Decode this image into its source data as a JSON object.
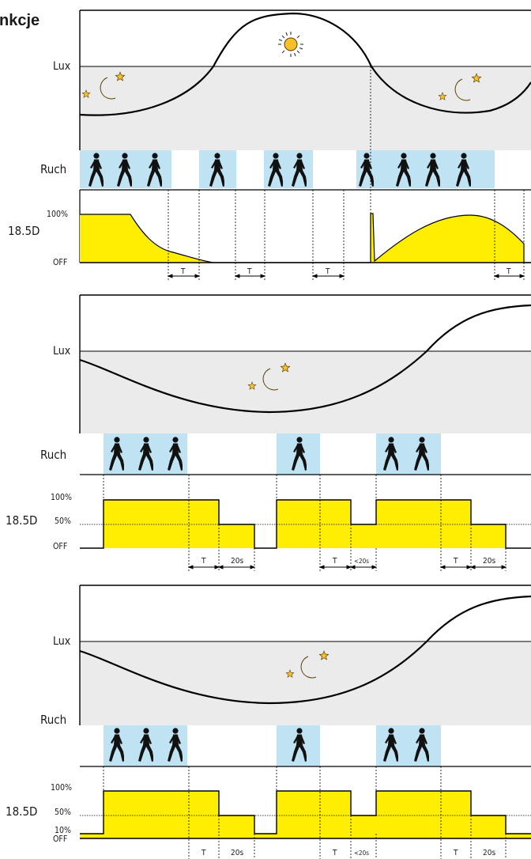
{
  "header": {
    "title": "nkcje"
  },
  "labels": {
    "lux": "Lux",
    "motion": "Ruch",
    "mode": "18.5D",
    "level_100": "100%",
    "level_50": "50%",
    "level_10": "10%",
    "level_off": "OFF",
    "delay_t": "T",
    "delay_20s": "20s",
    "delay_lt20s": "<20s"
  },
  "icons": {
    "sun": "sun-icon",
    "moon": "moon-icon",
    "star": "star-icon",
    "walker": "walking-person-icon"
  },
  "colors": {
    "line": "#000000",
    "lux_band": "#ebebeb",
    "motion_band": "#bfe3f3",
    "output_fill": "#ffee00",
    "celestial_fill": "#fbc02d",
    "celestial_stroke": "#5a4100"
  },
  "panels": [
    {
      "id": "panel-1",
      "lux_threshold": 0.55,
      "curve": "day-night-day",
      "motion_groups": [
        3,
        1,
        2,
        4
      ],
      "output_levels": [
        "off",
        "100%"
      ],
      "delays": [
        "T",
        "T",
        "T",
        "T"
      ]
    },
    {
      "id": "panel-2",
      "lux_threshold": 0.5,
      "curve": "night-to-day",
      "motion_groups": [
        3,
        1,
        2
      ],
      "output_levels": [
        "off",
        "50%",
        "100%"
      ],
      "delays": [
        "T",
        "20s",
        "T",
        "<20s",
        "T",
        "20s"
      ]
    },
    {
      "id": "panel-3",
      "lux_threshold": 0.5,
      "curve": "night-to-day",
      "motion_groups": [
        3,
        1,
        2
      ],
      "output_levels": [
        "off",
        "10%",
        "50%",
        "100%"
      ],
      "delays": [
        "T",
        "20s",
        "T",
        "<20s",
        "T",
        "20s"
      ]
    }
  ]
}
